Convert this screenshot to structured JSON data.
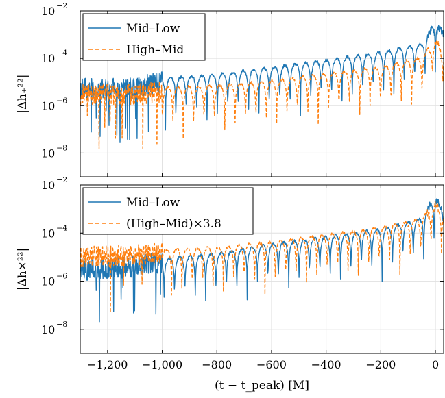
{
  "chart_data": [
    {
      "type": "line",
      "panel": "top",
      "ylabel": "|Δh₊²²|",
      "yscale": "log",
      "ylim": [
        1e-09,
        0.01
      ],
      "xlim": [
        -1300,
        30
      ],
      "yticks": [
        {
          "value": 1e-08,
          "base": "10",
          "exp": "−8"
        },
        {
          "value": 1e-06,
          "base": "10",
          "exp": "−6"
        },
        {
          "value": 0.0001,
          "base": "10",
          "exp": "−4"
        },
        {
          "value": 0.01,
          "base": "10",
          "exp": "−2"
        }
      ],
      "grid": true,
      "legend_position": "top-left",
      "series": [
        {
          "name": "Mid–Low",
          "color": "#1f77b4",
          "dash": "solid",
          "envelope": [
            [
              -1300,
              5e-06
            ],
            [
              -1100,
              6e-06
            ],
            [
              -1000,
              1e-05
            ],
            [
              -800,
              1.5e-05
            ],
            [
              -600,
              3e-05
            ],
            [
              -400,
              6e-05
            ],
            [
              -200,
              0.00013
            ],
            [
              -50,
              0.0003
            ],
            [
              0,
              0.0025
            ],
            [
              30,
              0.0008
            ]
          ],
          "cusp_spacing": 38
        },
        {
          "name": "High–Mid",
          "color": "#ff7f0e",
          "dash": "dashed",
          "envelope": [
            [
              -1300,
              3e-06
            ],
            [
              -1100,
              3e-06
            ],
            [
              -1000,
              4e-06
            ],
            [
              -800,
              5e-06
            ],
            [
              -600,
              8e-06
            ],
            [
              -400,
              1.6e-05
            ],
            [
              -200,
              3e-05
            ],
            [
              -50,
              8e-05
            ],
            [
              0,
              0.0004
            ],
            [
              30,
              0.00015
            ]
          ],
          "cusp_spacing": 38
        }
      ]
    },
    {
      "type": "line",
      "panel": "bottom",
      "xlabel": "(t − t_peak) [M]",
      "ylabel": "|Δh×²²|",
      "yscale": "log",
      "ylim": [
        1e-09,
        0.01
      ],
      "xlim": [
        -1300,
        30
      ],
      "xticks": [
        "−1,200",
        "−1,000",
        "−800",
        "−600",
        "−400",
        "−200",
        "0"
      ],
      "xtick_values": [
        -1200,
        -1000,
        -800,
        -600,
        -400,
        -200,
        0
      ],
      "yticks": [
        {
          "value": 1e-08,
          "base": "10",
          "exp": "−8"
        },
        {
          "value": 1e-06,
          "base": "10",
          "exp": "−6"
        },
        {
          "value": 0.0001,
          "base": "10",
          "exp": "−4"
        },
        {
          "value": 0.01,
          "base": "10",
          "exp": "−2"
        }
      ],
      "grid": true,
      "legend_position": "top-left",
      "series": [
        {
          "name": "Mid–Low",
          "color": "#1f77b4",
          "dash": "solid",
          "envelope": [
            [
              -1300,
              3e-06
            ],
            [
              -1100,
              4e-06
            ],
            [
              -1000,
              6e-06
            ],
            [
              -800,
              1e-05
            ],
            [
              -600,
              2.5e-05
            ],
            [
              -400,
              5e-05
            ],
            [
              -200,
              0.0001
            ],
            [
              -50,
              0.0003
            ],
            [
              0,
              0.0025
            ],
            [
              30,
              0.0005
            ]
          ],
          "cusp_spacing": 38
        },
        {
          "name": "(High–Mid)×3.8",
          "color": "#ff7f0e",
          "dash": "dashed",
          "envelope": [
            [
              -1300,
              1e-05
            ],
            [
              -1100,
              1.2e-05
            ],
            [
              -1000,
              1.5e-05
            ],
            [
              -800,
              1.8e-05
            ],
            [
              -600,
              3e-05
            ],
            [
              -400,
              6e-05
            ],
            [
              -200,
              0.00012
            ],
            [
              -50,
              0.0003
            ],
            [
              0,
              0.0012
            ],
            [
              30,
              0.0004
            ]
          ],
          "cusp_spacing": 38
        }
      ]
    }
  ]
}
